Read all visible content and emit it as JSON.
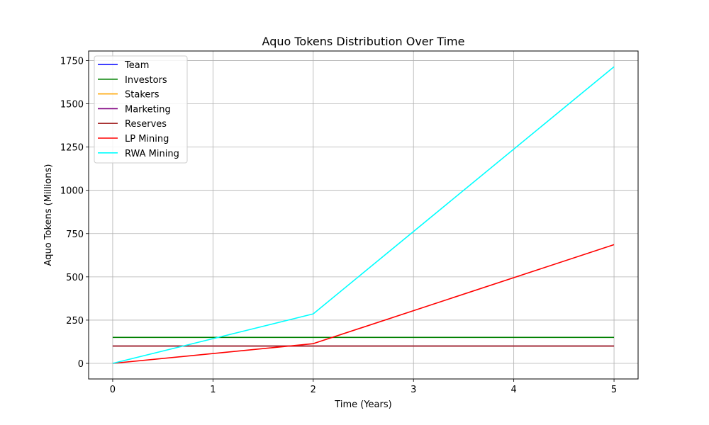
{
  "chart_data": {
    "type": "line",
    "title": "Aquo Tokens Distribution Over Time",
    "xlabel": "Time (Years)",
    "ylabel": "Aquo Tokens (Millions)",
    "x": [
      0,
      2,
      5
    ],
    "xticks": [
      0,
      1,
      2,
      3,
      4,
      5
    ],
    "yticks": [
      0,
      250,
      500,
      750,
      1000,
      1250,
      1500,
      1750
    ],
    "xlim": [
      -0.24,
      5.24
    ],
    "ylim": [
      -90,
      1805
    ],
    "grid": true,
    "legend_position": "top-left",
    "series": [
      {
        "name": "Team",
        "color": "#0000ff",
        "values": [
          100,
          100,
          100
        ]
      },
      {
        "name": "Investors",
        "color": "#008000",
        "values": [
          150,
          150,
          150
        ]
      },
      {
        "name": "Stakers",
        "color": "#ffa500",
        "values": [
          100,
          100,
          100
        ]
      },
      {
        "name": "Marketing",
        "color": "#800080",
        "values": [
          100,
          100,
          100
        ]
      },
      {
        "name": "Reserves",
        "color": "#a52a2a",
        "values": [
          100,
          100,
          100
        ]
      },
      {
        "name": "LP Mining",
        "color": "#ff0000",
        "values": [
          0,
          114,
          686
        ]
      },
      {
        "name": "RWA Mining",
        "color": "#00ffff",
        "values": [
          0,
          286,
          1714
        ]
      }
    ]
  }
}
